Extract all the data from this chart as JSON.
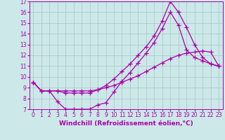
{
  "xlabel": "Windchill (Refroidissement éolien,°C)",
  "background_color": "#cce8e8",
  "line_color": "#aa00aa",
  "grid_color": "#aacccc",
  "xlim": [
    -0.5,
    23.5
  ],
  "ylim": [
    7,
    17
  ],
  "xticks": [
    0,
    1,
    2,
    3,
    4,
    5,
    6,
    7,
    8,
    9,
    10,
    11,
    12,
    13,
    14,
    15,
    16,
    17,
    18,
    19,
    20,
    21,
    22,
    23
  ],
  "yticks": [
    7,
    8,
    9,
    10,
    11,
    12,
    13,
    14,
    15,
    16,
    17
  ],
  "line1_x": [
    0,
    1,
    2,
    3,
    4,
    5,
    6,
    7,
    8,
    9,
    10,
    11,
    12,
    13,
    14,
    15,
    16,
    17,
    18,
    19,
    20,
    21,
    22,
    23
  ],
  "line1_y": [
    9.5,
    8.7,
    8.7,
    7.7,
    7.0,
    7.0,
    7.0,
    7.0,
    7.4,
    7.6,
    8.6,
    9.6,
    10.4,
    11.3,
    12.2,
    13.2,
    14.5,
    16.0,
    14.8,
    12.5,
    11.8,
    11.5,
    11.2,
    11.0
  ],
  "line2_x": [
    0,
    1,
    2,
    3,
    4,
    5,
    6,
    7,
    8,
    9,
    10,
    11,
    12,
    13,
    14,
    15,
    16,
    17,
    18,
    19,
    20,
    21,
    22,
    23
  ],
  "line2_y": [
    9.5,
    8.7,
    8.7,
    8.7,
    8.5,
    8.5,
    8.5,
    8.5,
    8.8,
    9.2,
    9.8,
    10.5,
    11.2,
    12.0,
    12.8,
    13.8,
    15.2,
    17.0,
    16.0,
    14.6,
    13.0,
    11.8,
    11.2,
    11.0
  ],
  "line3_x": [
    0,
    1,
    2,
    3,
    4,
    5,
    6,
    7,
    8,
    9,
    10,
    11,
    12,
    13,
    14,
    15,
    16,
    17,
    18,
    19,
    20,
    21,
    22,
    23
  ],
  "line3_y": [
    9.5,
    8.7,
    8.7,
    8.7,
    8.7,
    8.7,
    8.7,
    8.7,
    8.8,
    9.0,
    9.2,
    9.5,
    9.8,
    10.1,
    10.5,
    10.9,
    11.3,
    11.7,
    12.0,
    12.2,
    12.3,
    12.4,
    12.3,
    11.0
  ],
  "marker": "+",
  "marker_size": 4,
  "line_width": 0.9,
  "tick_fontsize": 5.5,
  "label_fontsize": 6.5
}
